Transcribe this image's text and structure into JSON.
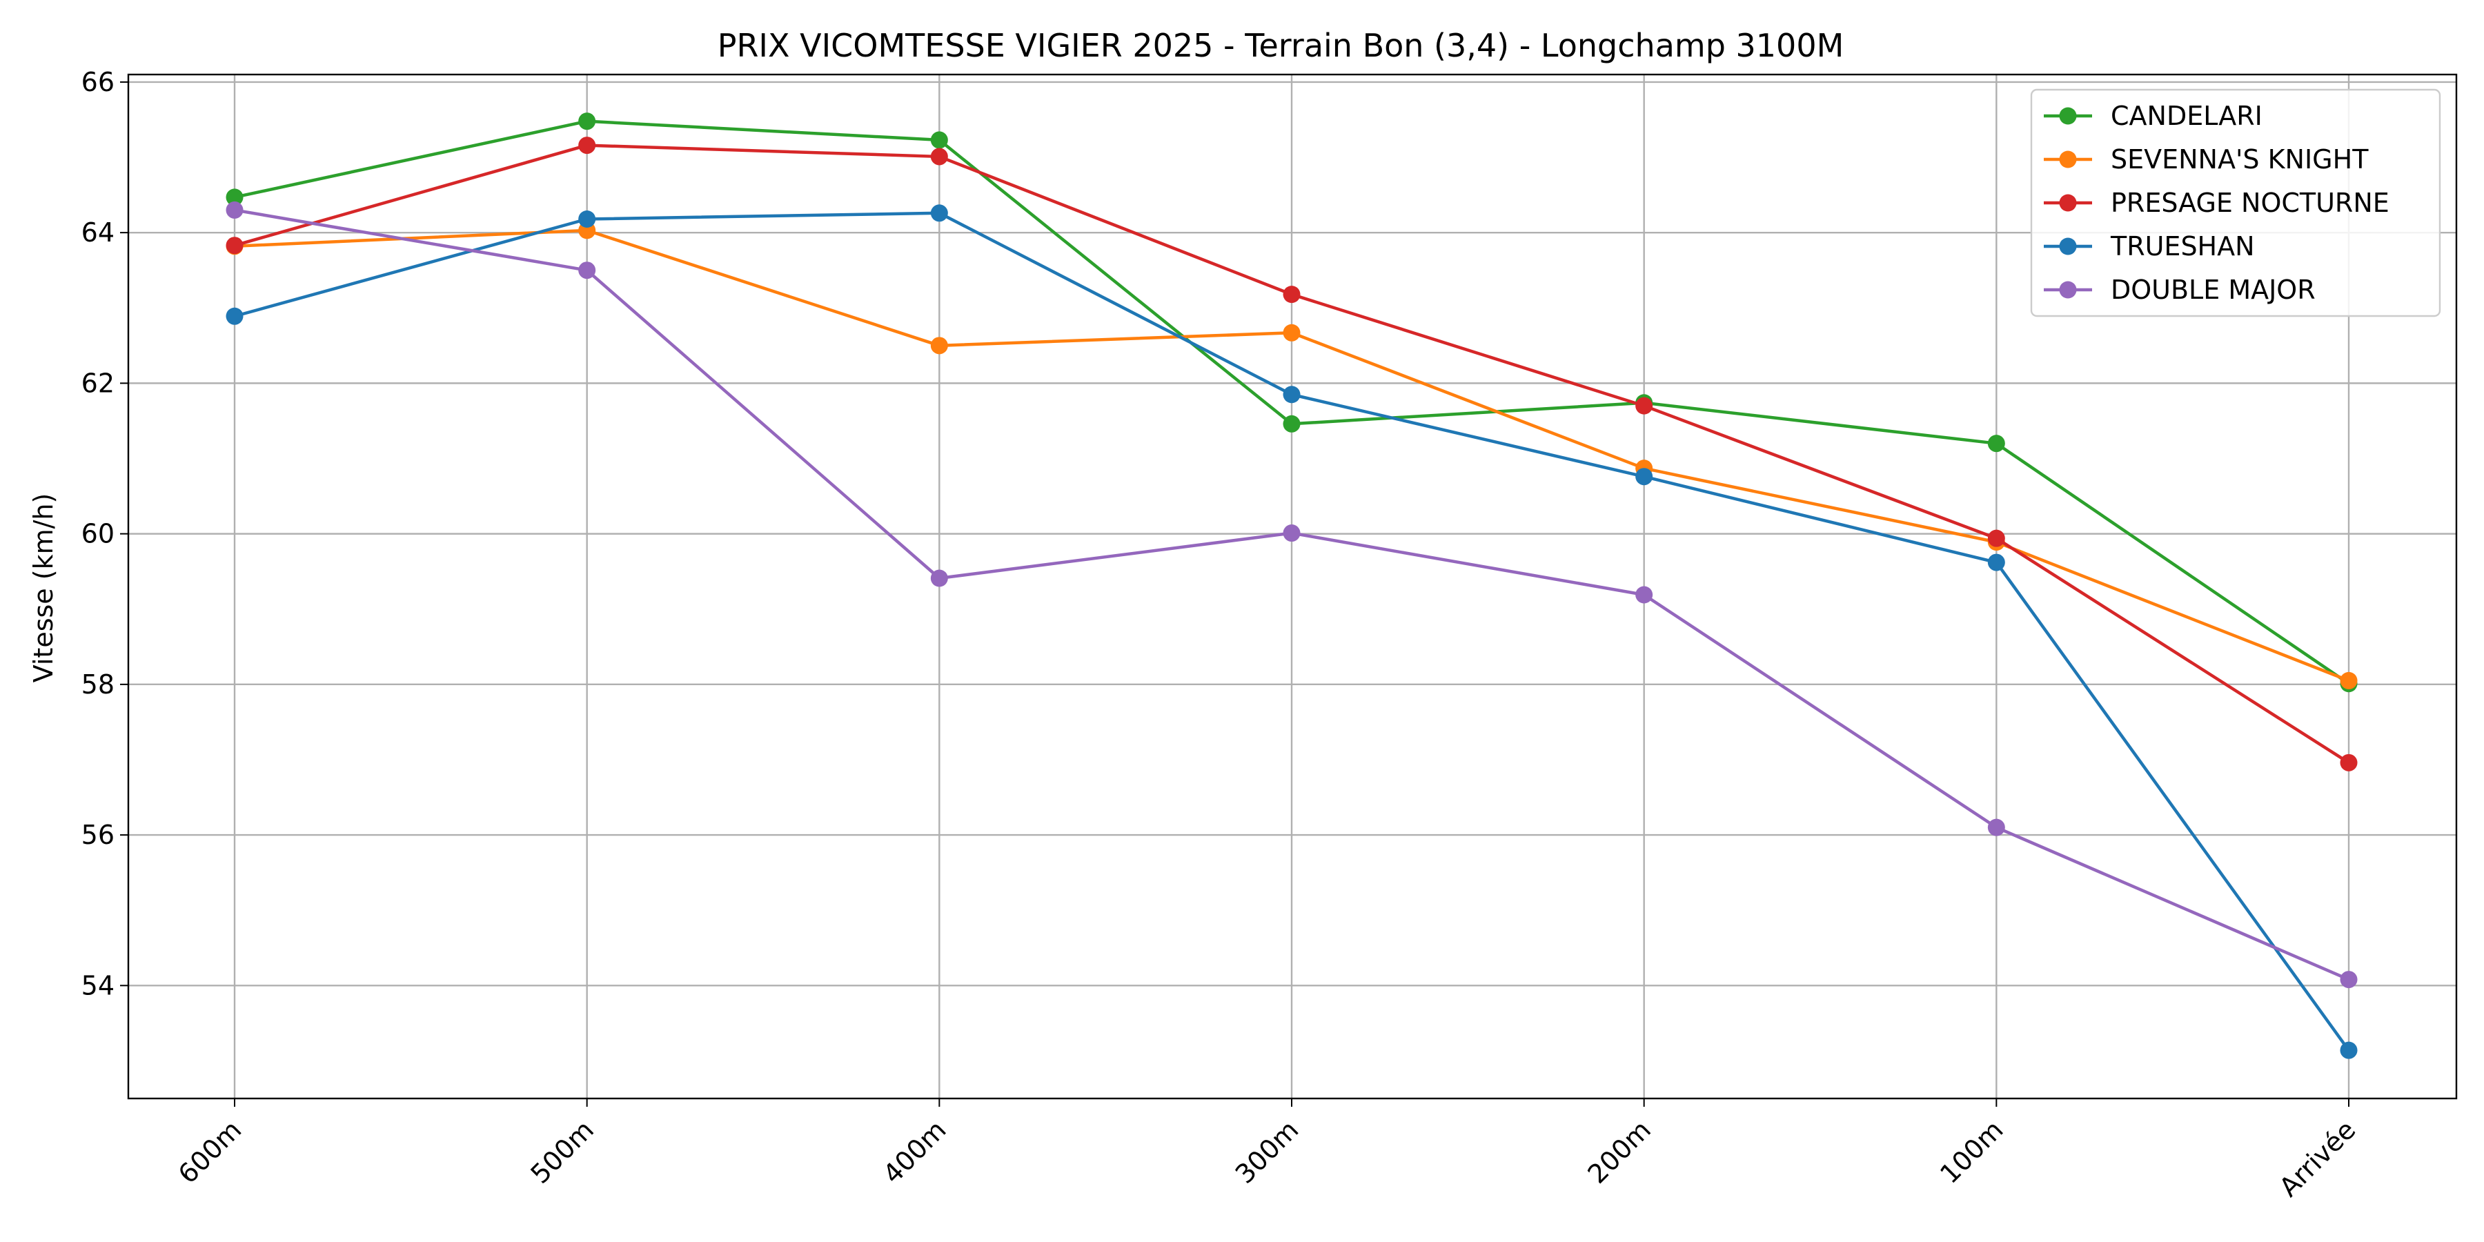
{
  "chart_data": {
    "type": "line",
    "title": "PRIX VICOMTESSE VIGIER 2025 - Terrain Bon (3,4) - Longchamp 3100M",
    "xlabel": "",
    "ylabel": "Vitesse (km/h)",
    "categories": [
      "600m",
      "500m",
      "400m",
      "300m",
      "200m",
      "100m",
      "Arrivée"
    ],
    "ylim": [
      52.5,
      66.1
    ],
    "yticks": [
      54,
      56,
      58,
      60,
      62,
      64,
      66
    ],
    "grid": true,
    "legend_position": "top-right",
    "series": [
      {
        "name": "CANDELARI",
        "color": "#2ca02c",
        "values": [
          64.47,
          65.48,
          65.23,
          61.46,
          61.74,
          61.2,
          58.01
        ]
      },
      {
        "name": "SEVENNA'S KNIGHT",
        "color": "#ff7f0e",
        "values": [
          63.82,
          64.03,
          62.5,
          62.67,
          60.87,
          59.89,
          58.05
        ]
      },
      {
        "name": "PRESAGE NOCTURNE",
        "color": "#d62728",
        "values": [
          63.83,
          65.16,
          65.01,
          63.18,
          61.7,
          59.94,
          56.96
        ]
      },
      {
        "name": "TRUESHAN",
        "color": "#1f77b4",
        "values": [
          62.89,
          64.18,
          64.26,
          61.85,
          60.76,
          59.62,
          53.14
        ]
      },
      {
        "name": "DOUBLE MAJOR",
        "color": "#9467bd",
        "values": [
          64.3,
          63.5,
          59.41,
          60.01,
          59.19,
          56.1,
          54.08
        ]
      }
    ]
  }
}
